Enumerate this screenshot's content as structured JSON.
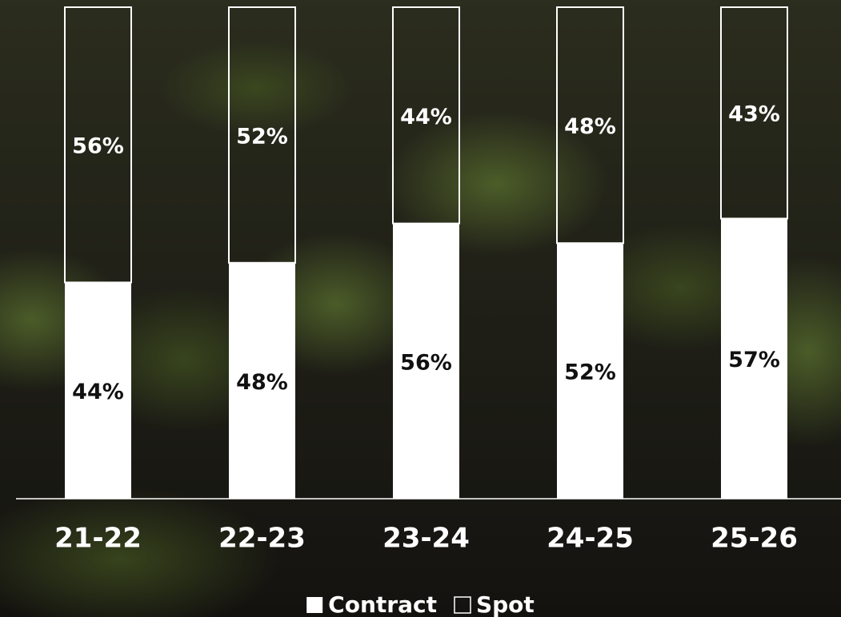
{
  "chart_data": {
    "type": "stacked-bar",
    "categories": [
      "21-22",
      "22-23",
      "23-24",
      "24-25",
      "25-26"
    ],
    "series": [
      {
        "name": "Contract",
        "color": "#ffffff",
        "style": "solid",
        "values": [
          44,
          48,
          56,
          52,
          57
        ],
        "value_labels": [
          "44%",
          "48%",
          "56%",
          "52%",
          "57%"
        ]
      },
      {
        "name": "Spot",
        "color": "#ffffff",
        "style": "outline",
        "values": [
          56,
          52,
          44,
          48,
          43
        ],
        "value_labels": [
          "56%",
          "52%",
          "44%",
          "48%",
          "43%"
        ]
      }
    ],
    "ylim": [
      0,
      100
    ],
    "legend": "bottom"
  }
}
